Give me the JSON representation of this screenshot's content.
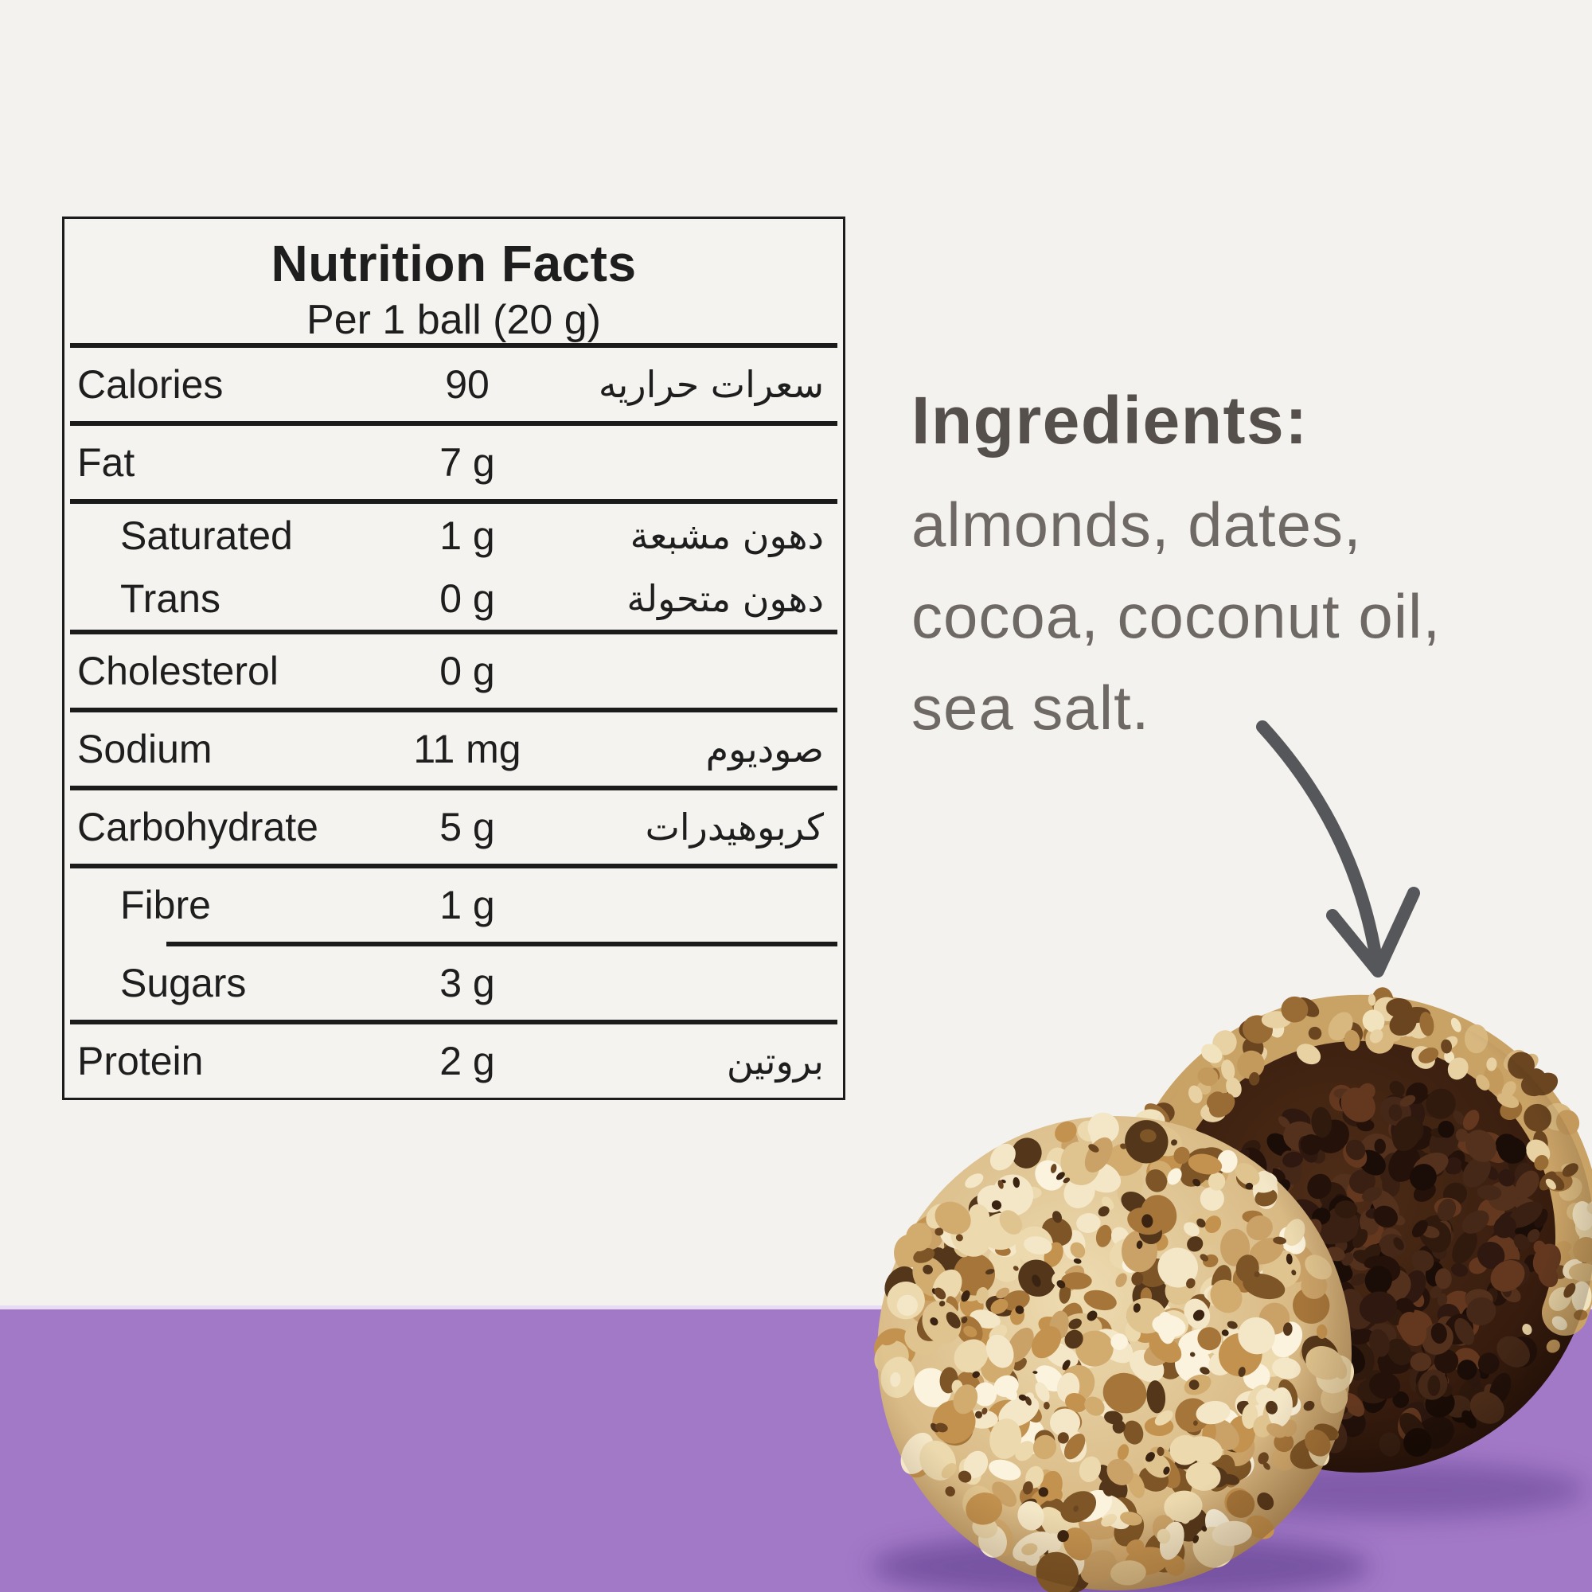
{
  "page": {
    "background_color": "#f4f2ee",
    "accent_purple": "#a279c7",
    "table_ink": "#1c1c1c",
    "ingredients_heading_color": "#55504b",
    "ingredients_body_color": "#6e6964"
  },
  "nutrition_table": {
    "title": "Nutrition Facts",
    "serving": "Per 1 ball (20 g)",
    "rows": [
      {
        "label": "Calories",
        "value": "90",
        "arabic": "سعرات حراريه"
      },
      {
        "label": "Fat",
        "value": "7 g",
        "arabic": ""
      },
      {
        "label": "Saturated",
        "value": "1 g",
        "arabic": "دهون مشبعة"
      },
      {
        "label": "Trans",
        "value": "0 g",
        "arabic": "دهون متحولة"
      },
      {
        "label": "Cholesterol",
        "value": "0 g",
        "arabic": ""
      },
      {
        "label": "Sodium",
        "value": "11 mg",
        "arabic": "صوديوم"
      },
      {
        "label": "Carbohydrate",
        "value": "5 g",
        "arabic": "كربوهيدرات"
      },
      {
        "label": "Fibre",
        "value": "1 g",
        "arabic": ""
      },
      {
        "label": "Sugars",
        "value": "3 g",
        "arabic": ""
      },
      {
        "label": "Protein",
        "value": "2 g",
        "arabic": "بروتين"
      }
    ]
  },
  "ingredients": {
    "heading": "Ingredients:",
    "lines": [
      "almonds, dates,",
      "cocoa, coconut oil,",
      "sea salt."
    ]
  },
  "icons": {
    "arrow": "curved-down-arrow-icon"
  },
  "photo": {
    "alt": "two energy balls: front one coated in chopped nuts, back one dark chocolate with crumbly bitten face"
  }
}
